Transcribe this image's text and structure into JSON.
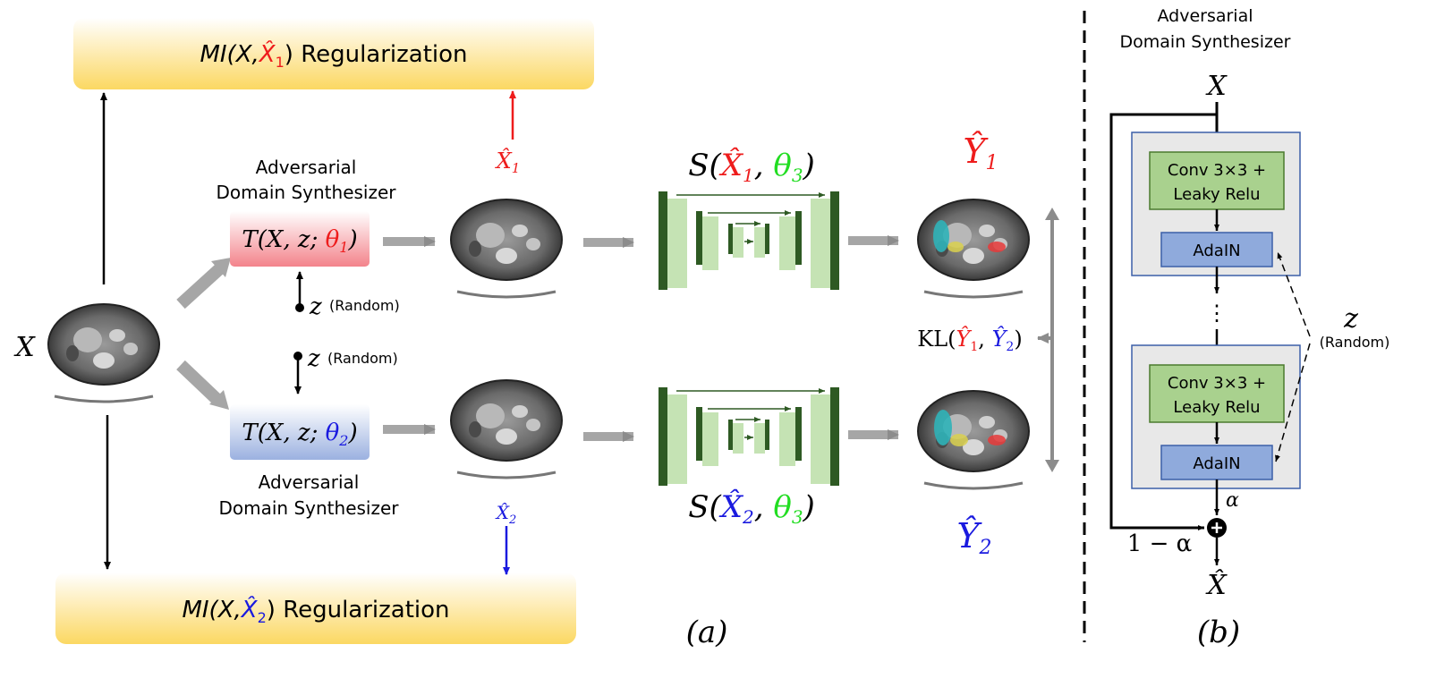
{
  "panel_a": {
    "mi_top": {
      "prefix": "MI(X,",
      "var": "X̂",
      "sub": "1",
      "suffix": ")",
      "label": "Regularization"
    },
    "mi_bottom": {
      "prefix": "MI(X,",
      "var": "X̂",
      "sub": "2",
      "suffix": ")",
      "label": "Regularization"
    },
    "input_x": "X",
    "syn1": {
      "caption_line1": "Adversarial",
      "caption_line2": "Domain Synthesizer",
      "formula_pre": "T(X, z; ",
      "formula_theta": "θ",
      "formula_sub": "1",
      "formula_post": ")"
    },
    "syn2": {
      "caption_line1": "Adversarial",
      "caption_line2": "Domain Synthesizer",
      "formula_pre": "T(X, z; ",
      "formula_theta": "θ",
      "formula_sub": "2",
      "formula_post": ")"
    },
    "z_label": "z",
    "z_random": "(Random)",
    "xhat1": {
      "var": "X̂",
      "sub": "1"
    },
    "xhat2": {
      "var": "X̂",
      "sub": "2"
    },
    "seg1": {
      "pre": "S(",
      "var": "X̂",
      "sub": "1",
      "comma": ", ",
      "theta": "θ",
      "theta_sub": "3",
      "post": ")"
    },
    "seg2": {
      "pre": "S(",
      "var": "X̂",
      "sub": "2",
      "comma": ", ",
      "theta": "θ",
      "theta_sub": "3",
      "post": ")"
    },
    "yhat1": {
      "var": "Ŷ",
      "sub": "1"
    },
    "yhat2": {
      "var": "Ŷ",
      "sub": "2"
    },
    "kl": {
      "pre": "KL(",
      "y1": "Ŷ",
      "s1": "1",
      "comma": ", ",
      "y2": "Ŷ",
      "s2": "2",
      "post": ")"
    },
    "panel_label": "(a)"
  },
  "panel_b": {
    "title_line1": "Adversarial",
    "title_line2": "Domain Synthesizer",
    "input_x": "X",
    "conv_line1": "Conv 3×3 +",
    "conv_line2": "Leaky Relu",
    "adain": "AdaIN",
    "ellipsis": "⋮",
    "z_label": "z",
    "z_random": "(Random)",
    "alpha": "α",
    "one_minus_alpha": "1 − α",
    "output": "X̂",
    "panel_label": "(b)"
  },
  "colors": {
    "red": "#ee1c1c",
    "blue": "#1a1adf",
    "green": "#22dd22",
    "unet_dark": "#2e5a23",
    "unet_light": "#c5e3b4",
    "conv_fill": "#a9d18e",
    "adain_fill": "#8faadc",
    "block_fill": "#e8e8e8",
    "mi_box": "#fbd862",
    "syn1_fill": "#f3838b",
    "syn2_fill": "#9bb1e0",
    "gray_arrow": "#a6a6a6"
  }
}
